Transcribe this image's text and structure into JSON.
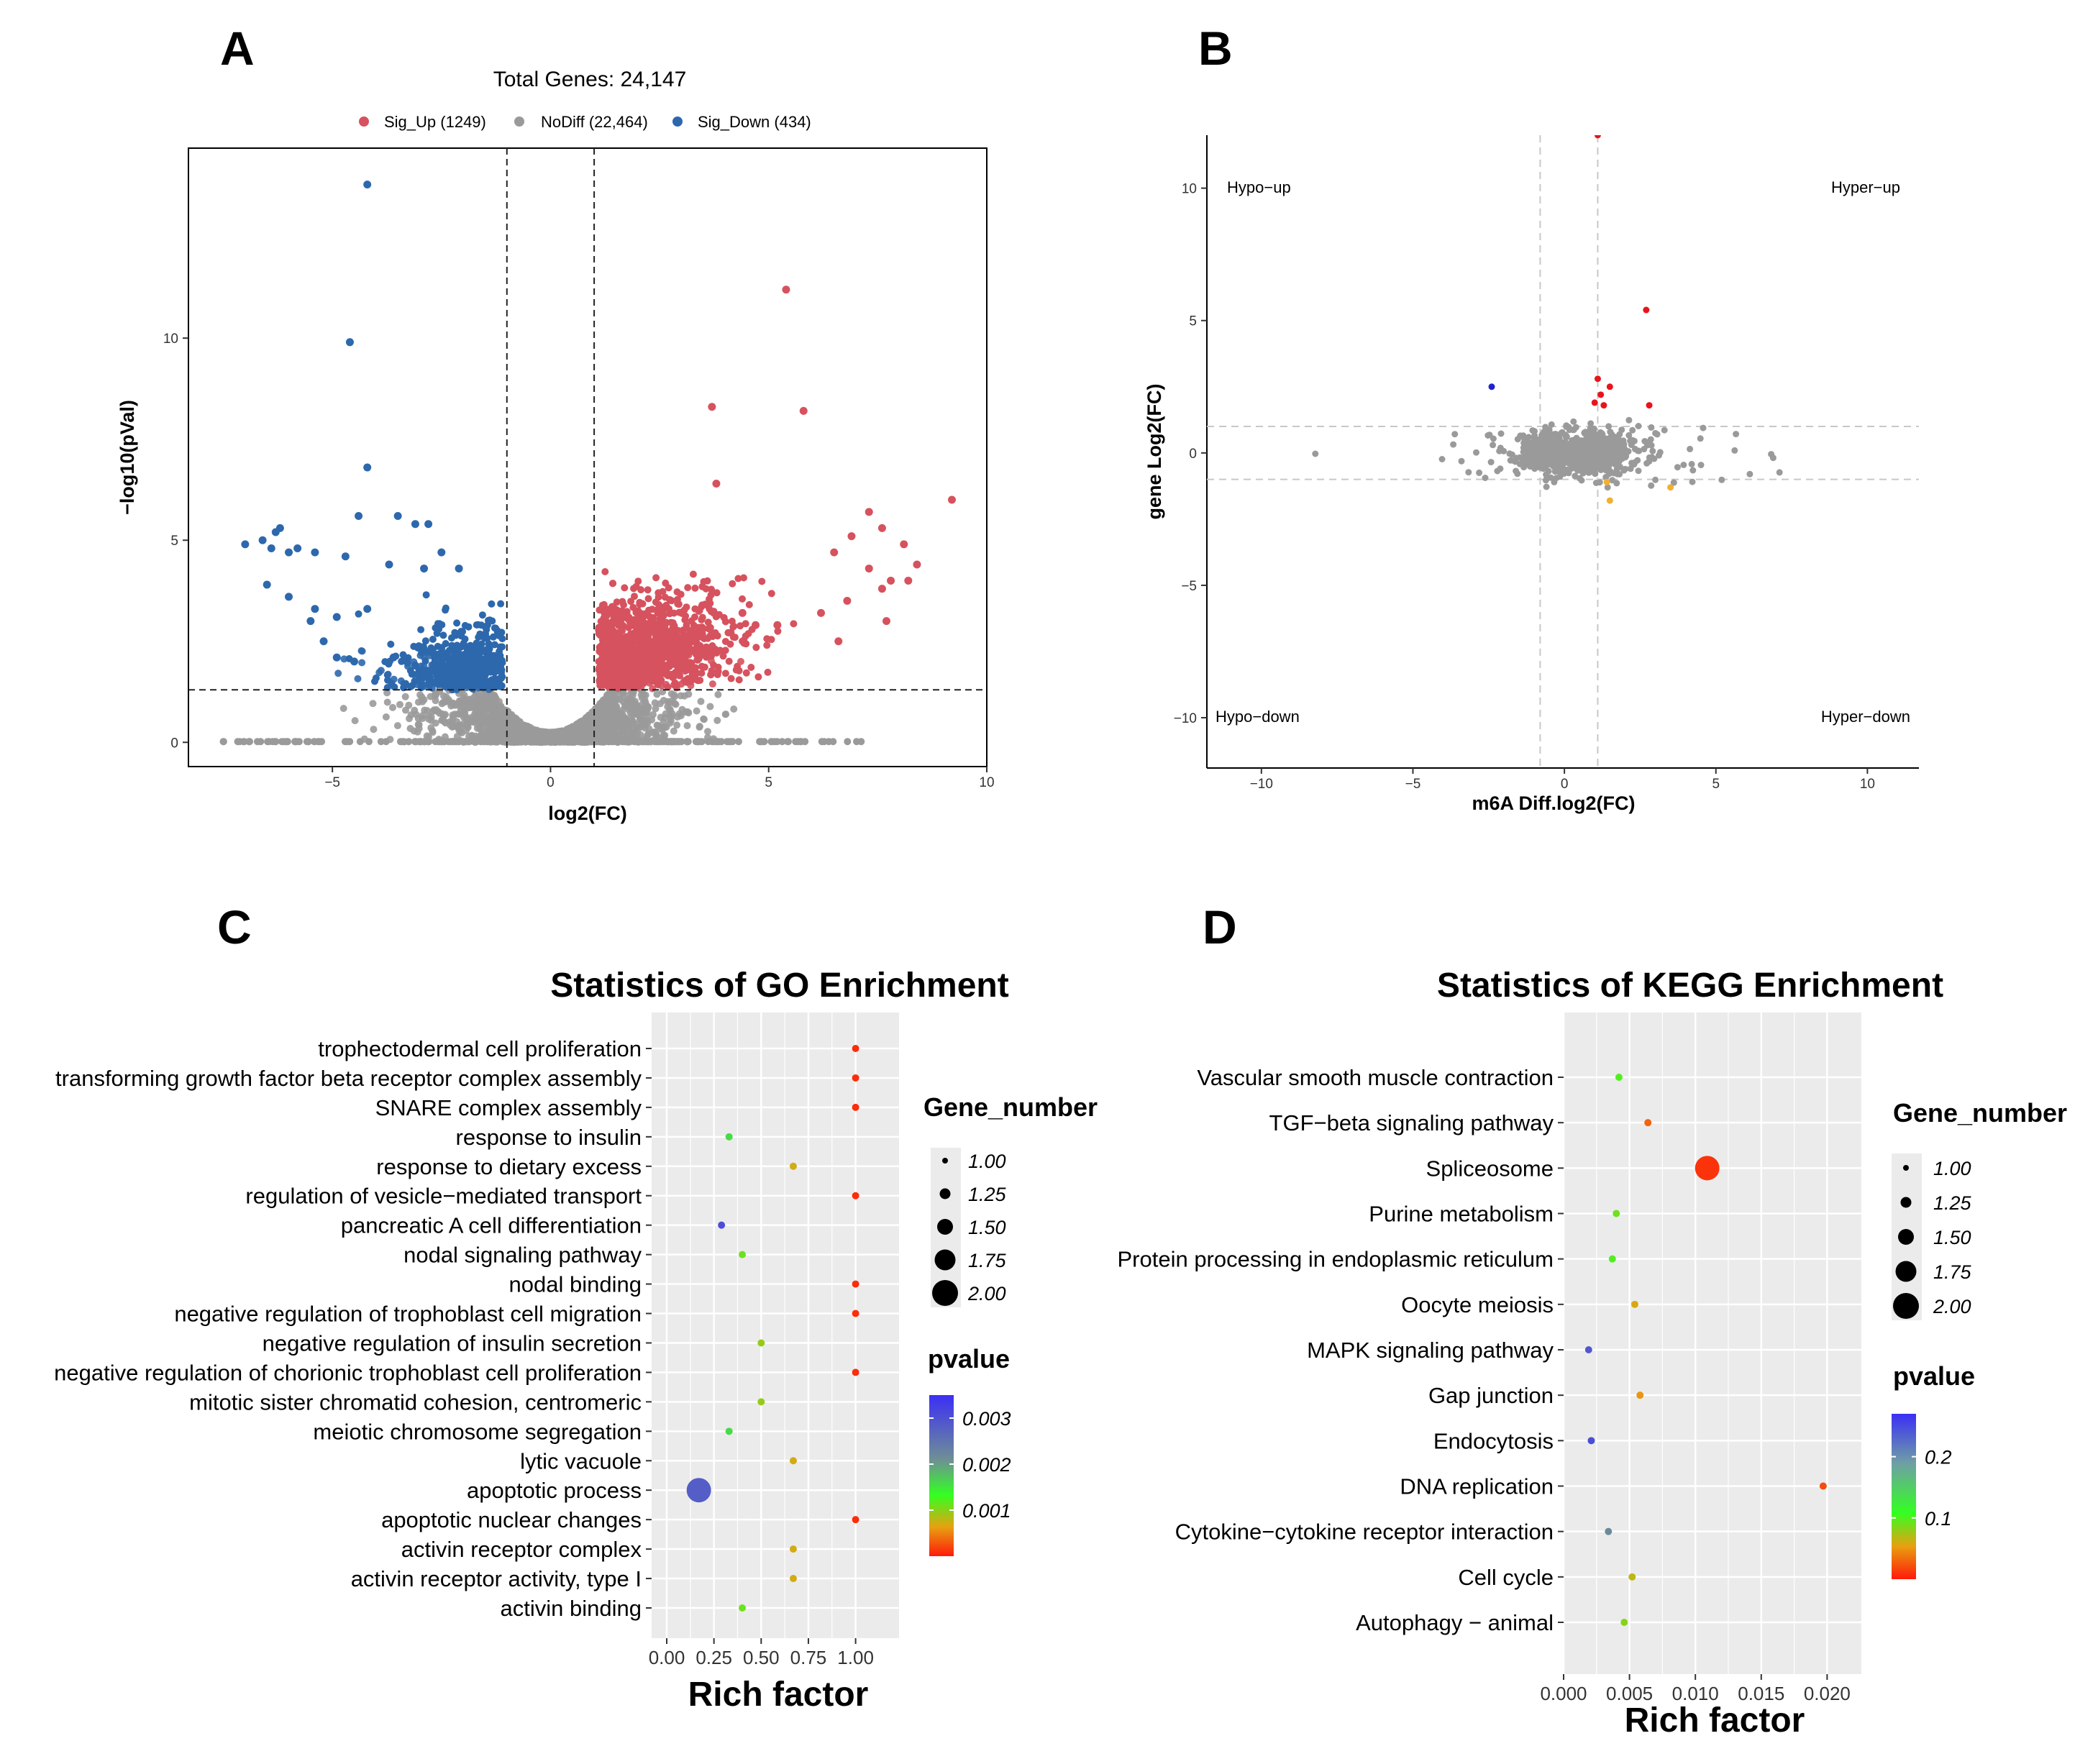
{
  "colors": {
    "up": "#d6525e",
    "nodiff": "#9a9a9a",
    "down": "#2d68ad",
    "panel_bg": "#ebebeb",
    "grid": "#ffffff",
    "gradient_high": "#3b2ff5",
    "gradient_mid": "#33ff22",
    "gradient_low": "#ff1a0a"
  },
  "panels": {
    "A": {
      "letter": "A"
    },
    "B": {
      "letter": "B"
    },
    "C": {
      "letter": "C"
    },
    "D": {
      "letter": "D"
    }
  },
  "chart_data": [
    {
      "panel": "A",
      "type": "scatter",
      "title": "Total Genes: 24,147",
      "xlabel": "log2(FC)",
      "ylabel": "−log10(pVal)",
      "xlim": [
        -8.3,
        10
      ],
      "ylim": [
        -0.6,
        14.7
      ],
      "xticks": [
        -5,
        0,
        5,
        10
      ],
      "xtick_labels": [
        "−5",
        "0",
        "5",
        "10"
      ],
      "yticks": [
        0,
        5,
        10
      ],
      "ytick_labels": [
        "0",
        "5",
        "10"
      ],
      "thresholds": {
        "x": [
          -1,
          1
        ],
        "y": 1.3
      },
      "legend": {
        "placement": "top",
        "items": [
          {
            "key": "up",
            "label": "Sig_Up (1249)"
          },
          {
            "key": "nodiff",
            "label": "NoDiff (22,464)"
          },
          {
            "key": "down",
            "label": "Sig_Down (434)"
          }
        ]
      },
      "series": [
        {
          "name": "Sig_Down",
          "key": "down",
          "points": [
            [
              -4.2,
              13.8
            ],
            [
              -4.6,
              9.9
            ],
            [
              -4.2,
              6.8
            ],
            [
              -7,
              4.9
            ],
            [
              -6.6,
              5
            ],
            [
              -6.3,
              5.2
            ],
            [
              -6.2,
              5.3
            ],
            [
              -6.4,
              4.8
            ],
            [
              -6,
              4.7
            ],
            [
              -5.8,
              4.8
            ],
            [
              -5.4,
              4.7
            ],
            [
              -6.5,
              3.9
            ],
            [
              -6,
              3.6
            ],
            [
              -5.5,
              3
            ],
            [
              -5.4,
              3.3
            ],
            [
              -4.4,
              5.6
            ],
            [
              -3.5,
              5.6
            ],
            [
              -3.1,
              5.4
            ],
            [
              -2.8,
              5.4
            ],
            [
              -2.5,
              4.7
            ],
            [
              -4.7,
              4.6
            ],
            [
              -3.7,
              4.4
            ],
            [
              -2.9,
              4.3
            ],
            [
              -2.1,
              4.3
            ],
            [
              -4.9,
              3.1
            ],
            [
              -4.2,
              3.3
            ],
            [
              -5.2,
              2.5
            ],
            [
              -4.9,
              2.1
            ],
            [
              -4.5,
              2
            ],
            [
              -3.6,
              2.1
            ],
            [
              -3.1,
              1.9
            ]
          ]
        },
        {
          "name": "Sig_Up",
          "key": "up",
          "points": [
            [
              5.4,
              11.2
            ],
            [
              3.7,
              8.3
            ],
            [
              5.8,
              8.2
            ],
            [
              3.8,
              6.4
            ],
            [
              9.2,
              6
            ],
            [
              7.3,
              5.7
            ],
            [
              7.6,
              5.3
            ],
            [
              6.9,
              5.1
            ],
            [
              8.1,
              4.9
            ],
            [
              6.5,
              4.7
            ],
            [
              7.3,
              4.3
            ],
            [
              8.4,
              4.4
            ],
            [
              7.8,
              4
            ],
            [
              8.2,
              4
            ],
            [
              7.6,
              3.8
            ],
            [
              6.8,
              3.5
            ],
            [
              6.2,
              3.2
            ],
            [
              7.7,
              3
            ],
            [
              6.6,
              2.5
            ],
            [
              5.2,
              2.9
            ],
            [
              4.7,
              2.9
            ],
            [
              4.4,
              3.2
            ]
          ]
        }
      ]
    },
    {
      "panel": "B",
      "type": "scatter",
      "xlabel": "m6A Diff.log2(FC)",
      "ylabel": "gene Log2(FC)",
      "xlim": [
        -11.8,
        11.7
      ],
      "ylim": [
        -11.9,
        12
      ],
      "xticks": [
        -10,
        -5,
        0,
        5,
        10
      ],
      "xtick_labels": [
        "−10",
        "−5",
        "0",
        "5",
        "10"
      ],
      "yticks": [
        -10,
        -5,
        0,
        5,
        10
      ],
      "ytick_labels": [
        "−10",
        "−5",
        "0",
        "5",
        "10"
      ],
      "thresholds": {
        "x": [
          -0.8,
          1.1
        ],
        "y": [
          1,
          -1
        ]
      },
      "quadrant_labels": {
        "top_left": "Hypo−up",
        "top_right": "Hyper−up",
        "bottom_left": "Hypo−down",
        "bottom_right": "Hyper−down"
      },
      "highlighted_points": {
        "red": [
          [
            2.7,
            5.4
          ],
          [
            1.1,
            2.8
          ],
          [
            1.5,
            2.5
          ],
          [
            1.2,
            2.2
          ],
          [
            1.0,
            1.9
          ],
          [
            1.3,
            1.8
          ],
          [
            2.8,
            1.8
          ],
          [
            1.1,
            12
          ]
        ],
        "blue": [
          [
            -2.4,
            2.5
          ]
        ],
        "orange": [
          [
            1.4,
            -1.1
          ],
          [
            1.5,
            -1.8
          ],
          [
            3.5,
            -1.3
          ]
        ]
      }
    },
    {
      "panel": "C",
      "type": "scatter",
      "title": "Statistics of GO Enrichment",
      "xlabel": "Rich factor",
      "ylabel": "",
      "xlim": [
        -0.08,
        1.23
      ],
      "xticks": [
        0,
        0.25,
        0.5,
        0.75,
        1
      ],
      "xtick_labels": [
        "0.00",
        "0.25",
        "0.50",
        "0.75",
        "1.00"
      ],
      "size_legend": {
        "title": "Gene_number",
        "values": [
          "1.00",
          "1.25",
          "1.50",
          "1.75",
          "2.00"
        ]
      },
      "color_legend": {
        "title": "pvalue",
        "range": [
          0,
          0.0035
        ],
        "tick_values": [
          0.003,
          0.002,
          0.001
        ],
        "tick_labels": [
          "0.003",
          "0.002",
          "0.001"
        ]
      },
      "terms": [
        "trophectodermal cell proliferation",
        "transforming growth factor beta receptor complex assembly",
        "SNARE complex assembly",
        "response to insulin",
        "response to dietary excess",
        "regulation of vesicle−mediated transport",
        "pancreatic A cell differentiation",
        "nodal signaling pathway",
        "nodal binding",
        "negative regulation of trophoblast cell migration",
        "negative regulation of insulin secretion",
        "negative regulation of chorionic trophoblast cell proliferation",
        "mitotic sister chromatid cohesion, centromeric",
        "meiotic chromosome segregation",
        "lytic vacuole",
        "apoptotic process",
        "apoptotic nuclear changes",
        "activin receptor complex",
        "activin receptor activity, type I",
        "activin binding"
      ],
      "rich_factor": [
        1,
        1,
        1,
        0.33,
        0.67,
        1,
        0.29,
        0.4,
        1,
        1,
        0.5,
        1,
        0.5,
        0.33,
        0.67,
        0.17,
        1,
        0.67,
        0.67,
        0.4
      ],
      "gene_number": [
        1,
        1,
        1,
        1,
        1,
        1,
        1,
        1,
        1,
        1,
        1,
        1,
        1,
        1,
        1,
        2,
        1,
        1,
        1,
        1
      ],
      "pvalue": [
        0.0001,
        0.0001,
        0.0001,
        0.0018,
        0.0008,
        0.0001,
        0.0031,
        0.0013,
        0.0001,
        0.0001,
        0.0011,
        0.0001,
        0.0011,
        0.0018,
        0.0008,
        0.0029,
        0.0001,
        0.0008,
        0.0008,
        0.0013
      ]
    },
    {
      "panel": "D",
      "type": "scatter",
      "title": "Statistics of KEGG Enrichment",
      "xlabel": "Rich factor",
      "ylabel": "",
      "xlim": [
        0,
        0.0226
      ],
      "xticks": [
        0,
        0.005,
        0.01,
        0.015,
        0.02
      ],
      "xtick_labels": [
        "0.000",
        "0.005",
        "0.010",
        "0.015",
        "0.020"
      ],
      "size_legend": {
        "title": "Gene_number",
        "values": [
          "1.00",
          "1.25",
          "1.50",
          "1.75",
          "2.00"
        ]
      },
      "color_legend": {
        "title": "pvalue",
        "range": [
          0,
          0.27
        ],
        "tick_values": [
          0.2,
          0.1
        ],
        "tick_labels": [
          "0.2",
          "0.1"
        ]
      },
      "terms": [
        "Vascular smooth muscle contraction",
        "TGF−beta signaling pathway",
        "Spliceosome",
        "Purine metabolism",
        "Protein processing in endoplasmic reticulum",
        "Oocyte meiosis",
        "MAPK signaling pathway",
        "Gap junction",
        "Endocytosis",
        "DNA replication",
        "Cytokine−cytokine receptor interaction",
        "Cell cycle",
        "Autophagy − animal"
      ],
      "rich_factor": [
        0.0042,
        0.0064,
        0.0109,
        0.004,
        0.0037,
        0.0054,
        0.0019,
        0.0058,
        0.0021,
        0.0197,
        0.0034,
        0.0052,
        0.0046
      ],
      "gene_number": [
        1,
        1,
        2,
        1,
        1,
        1,
        1,
        1,
        1,
        1,
        1,
        1,
        1
      ],
      "pvalue": [
        0.11,
        0.03,
        0.01,
        0.1,
        0.11,
        0.06,
        0.23,
        0.05,
        0.24,
        0.02,
        0.18,
        0.07,
        0.09
      ]
    }
  ]
}
